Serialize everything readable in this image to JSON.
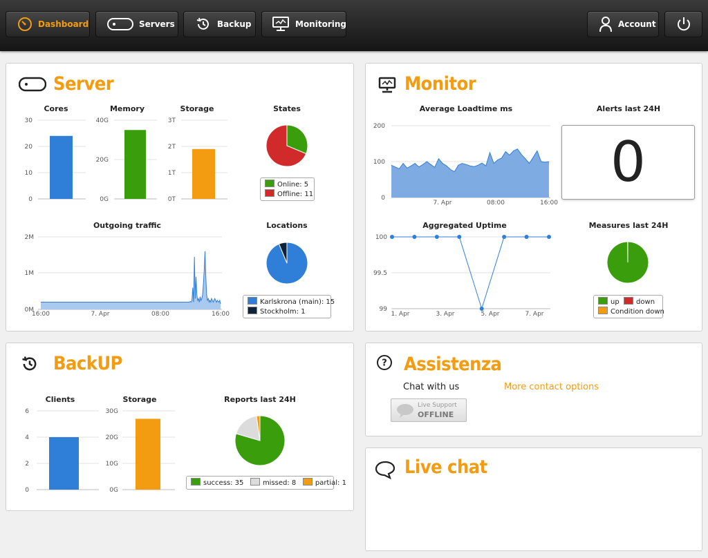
{
  "nav": {
    "dashboard": "Dashboard",
    "servers": "Servers",
    "backup": "Backup",
    "monitoring": "Monitoring",
    "account": "Account"
  },
  "colors": {
    "accent": "#f39c12",
    "blue": "#2f7ed8",
    "green": "#3a9e0c",
    "red": "#d12a2a",
    "orange": "#f39c12",
    "dark": "#0d233a",
    "grey": "#dcdcdc"
  },
  "server": {
    "title": "Server",
    "cores": {
      "label": "Cores",
      "ticks": [
        "30",
        "20",
        "10",
        "0"
      ],
      "value": 24,
      "max": 30
    },
    "memory": {
      "label": "Memory",
      "ticks": [
        "40G",
        "20G",
        "0G"
      ],
      "value": 35,
      "max": 40
    },
    "storage": {
      "label": "Storage",
      "ticks": [
        "3T",
        "2T",
        "1T",
        "0T"
      ],
      "value": 1.9,
      "max": 3
    },
    "states": {
      "label": "States",
      "legend": [
        "Online: 5",
        "Offline: 11"
      ],
      "values": [
        5,
        11
      ]
    },
    "traffic": {
      "label": "Outgoing traffic",
      "yticks": [
        "2M",
        "1M",
        "0M"
      ],
      "xticks": [
        "16:00",
        "7. Apr",
        "08:00",
        "16:00"
      ],
      "ymax": 2000000,
      "values": [
        200000,
        200000,
        200000,
        200000,
        200000,
        200000,
        200000,
        200000,
        200000,
        200000,
        200000,
        200000,
        200000,
        200000,
        200000,
        200000,
        200000,
        200000,
        200000,
        200000,
        200000,
        200000,
        200000,
        200000,
        200000,
        200000,
        200000,
        200000,
        200000,
        200000,
        200000,
        200000,
        200000,
        200000,
        200000,
        200000,
        200000,
        200000,
        200000,
        200000,
        200000,
        200000,
        200000,
        200000,
        200000,
        200000,
        200000,
        200000,
        200000,
        200000,
        200000,
        200000,
        200000,
        200000,
        200000,
        200000,
        200000,
        200000,
        200000,
        200000,
        200000,
        200000,
        200000,
        200000,
        200000,
        200000,
        200000,
        200000,
        200000,
        200000,
        200000,
        200000,
        200000,
        200000,
        200000,
        200000,
        200000,
        200000,
        200000,
        200000,
        200000,
        200000,
        200000,
        200000,
        200000,
        200000,
        200000,
        200000,
        200000,
        200000,
        200000,
        200000,
        200000,
        200000,
        200000,
        200000,
        200000,
        200000,
        200000,
        200000,
        200000,
        200000,
        200000,
        200000,
        200000,
        200000,
        200000,
        200000,
        200000,
        200000,
        200000,
        200000,
        200000,
        200000,
        200000,
        200000,
        200000,
        200000,
        200000,
        200000,
        200000,
        200000,
        200000,
        200000,
        200000,
        200000,
        200000,
        200000,
        200000,
        200000,
        200000,
        200000,
        200000,
        200000,
        200000,
        200000,
        200000,
        200000,
        200000,
        200000,
        200000,
        200000,
        200000,
        200000,
        200000,
        200000,
        200000,
        200000,
        200000,
        200000,
        200000,
        200000,
        200000,
        200000,
        200000,
        200000,
        200000,
        200000,
        200000,
        200000,
        200000,
        200000,
        200000,
        200000,
        200000,
        200000,
        200000,
        200000,
        200000,
        200000,
        200000,
        200000,
        200000,
        200000,
        200000,
        200000,
        200000,
        200000,
        200000,
        200000,
        200000,
        200000,
        200000,
        220000,
        200000,
        240000,
        600000,
        200000,
        1450000,
        300000,
        900000,
        400000,
        250000,
        300000,
        200000,
        350000,
        250000,
        300000,
        400000,
        700000,
        1100000,
        1600000,
        900000,
        400000,
        250000,
        300000,
        200000,
        250000,
        200000,
        300000,
        250000,
        200000,
        250000,
        300000,
        250000,
        200000,
        250000,
        220000,
        200000,
        250000,
        150000
      ]
    },
    "locations": {
      "label": "Locations",
      "legend": [
        "Karlskrona (main): 15",
        "Stockholm: 1"
      ],
      "values": [
        15,
        1
      ]
    }
  },
  "monitor": {
    "title": "Monitor",
    "loadtime": {
      "label": "Average Loadtime ms",
      "yticks": [
        "200",
        "100",
        "0"
      ],
      "xticks": [
        "7. Apr",
        "08:00",
        "16:00"
      ],
      "ymax": 200,
      "values": [
        90,
        85,
        80,
        95,
        82,
        88,
        95,
        85,
        92,
        100,
        92,
        84,
        108,
        95,
        88,
        78,
        72,
        90,
        95,
        92,
        88,
        86,
        90,
        96,
        88,
        125,
        95,
        105,
        110,
        128,
        118,
        130,
        135,
        120,
        108,
        95,
        112,
        130,
        100,
        98,
        100
      ]
    },
    "alerts": {
      "label": "Alerts last 24H",
      "value": "0"
    },
    "uptime": {
      "label": "Aggregated Uptime",
      "yticks": [
        "100",
        "99.5",
        "99"
      ],
      "xticks": [
        "1. Apr",
        "3. Apr",
        "5. Apr",
        "7. Apr"
      ],
      "ymin": 99,
      "ymax": 100,
      "values": [
        100,
        100,
        100,
        100,
        99,
        100,
        100,
        100
      ]
    },
    "measures": {
      "label": "Measures last 24H",
      "legend": [
        "up",
        "down",
        "Condition down"
      ],
      "values": [
        999,
        1,
        0
      ]
    }
  },
  "backup": {
    "title": "BackUP",
    "clients": {
      "label": "Clients",
      "ticks": [
        "6",
        "4",
        "2",
        "0"
      ],
      "value": 4,
      "max": 6
    },
    "storage": {
      "label": "Storage",
      "ticks": [
        "30G",
        "20G",
        "10G",
        "0G"
      ],
      "value": 27,
      "max": 30
    },
    "reports": {
      "label": "Reports last 24H",
      "legend": [
        "success: 35",
        "missed: 8",
        "partial: 1"
      ],
      "values": [
        35,
        8,
        1
      ]
    }
  },
  "assistenza": {
    "title": "Assistenza",
    "chat_with_us": "Chat with us",
    "more_contact": "More contact options",
    "live_support": "Live Support",
    "offline": "OFFLINE"
  },
  "livechat": {
    "title": "Live chat"
  }
}
